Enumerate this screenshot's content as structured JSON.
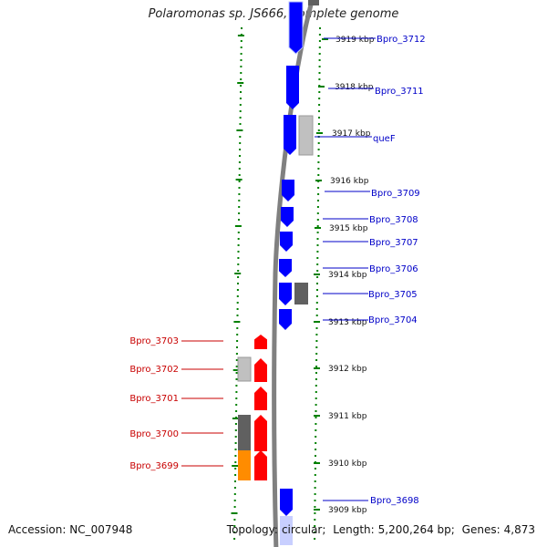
{
  "title": "Polaromonas sp. JS666, complete genome",
  "footer": {
    "accession_label": "Accession:",
    "accession": "NC_007948",
    "topology_label": "Topology:",
    "topology": "circular;",
    "length_label": "Length:",
    "length": "5,200,264 bp;",
    "genes_label": "Genes:",
    "genes": "4,873"
  },
  "colors": {
    "forward_gene": "#0000ff",
    "reverse_gene": "#ff0000",
    "backbone": "#808080",
    "ticks": "#008000",
    "gray_feature": "#c0c0c0",
    "dark_feature": "#606060",
    "orange_feature": "#ff8c00"
  },
  "ticks": [
    "3919 kbp",
    "3918 kbp",
    "3917 kbp",
    "3916 kbp",
    "3915 kbp",
    "3914 kbp",
    "3913 kbp",
    "3912 kbp",
    "3911 kbp",
    "3910 kbp",
    "3909 kbp"
  ],
  "forward_genes": [
    "Bpro_3712",
    "Bpro_3711",
    "queF",
    "Bpro_3709",
    "Bpro_3708",
    "Bpro_3707",
    "Bpro_3706",
    "Bpro_3705",
    "Bpro_3704",
    "Bpro_3698"
  ],
  "reverse_genes": [
    "Bpro_3703",
    "Bpro_3702",
    "Bpro_3701",
    "Bpro_3700",
    "Bpro_3699"
  ]
}
